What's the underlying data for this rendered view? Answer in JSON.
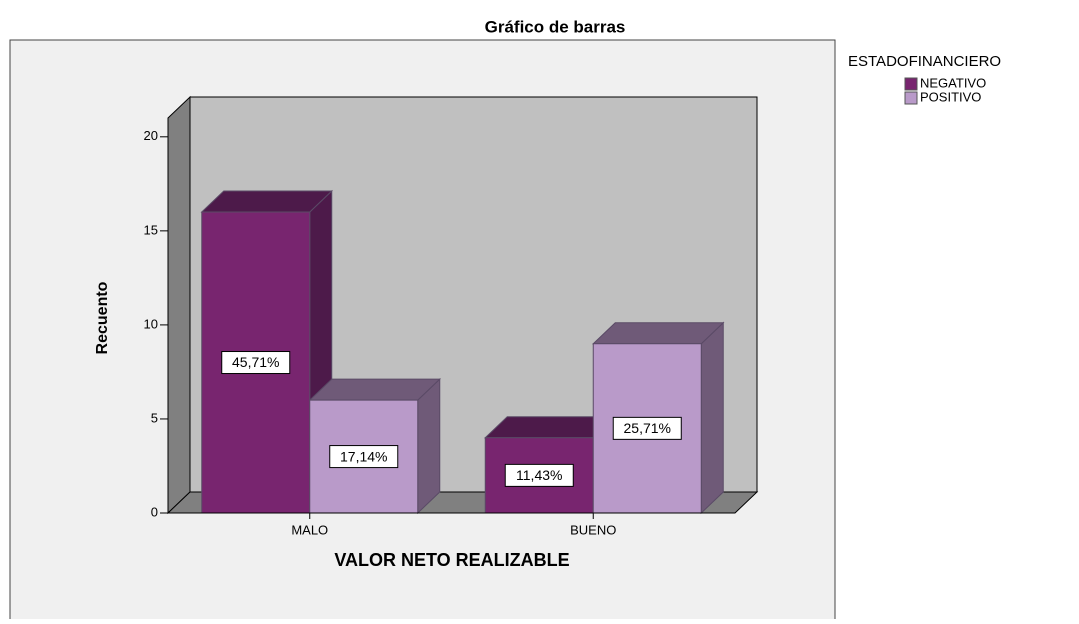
{
  "chart_data": {
    "type": "bar3d",
    "title": "Gráfico de barras",
    "x_label": "VALOR NETO REALIZABLE",
    "y_label": "Recuento",
    "legend_title": "ESTADOFINANCIERO",
    "legend": "right",
    "categories": [
      "MALO",
      "BUENO"
    ],
    "series": [
      {
        "name": "NEGATIVO",
        "color": "#78256f",
        "shade": "#4d1a4a",
        "values": [
          16,
          4
        ],
        "percentages": [
          45.71,
          11.43
        ],
        "percentage_labels": [
          "45,71%",
          "11,43%"
        ]
      },
      {
        "name": "POSITIVO",
        "color": "#b99ac9",
        "shade": "#6f5a78",
        "values": [
          6,
          9
        ],
        "percentages": [
          17.14,
          25.71
        ],
        "percentage_labels": [
          "17,14%",
          "25,71%"
        ]
      }
    ],
    "ylim": [
      0,
      21
    ],
    "yticks": [
      0,
      5,
      10,
      15,
      20
    ]
  }
}
